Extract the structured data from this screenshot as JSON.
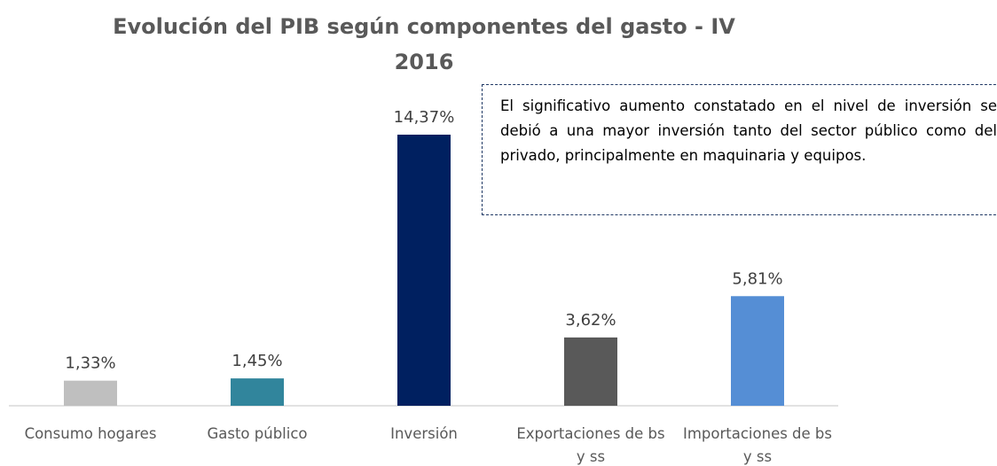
{
  "chart_data": {
    "type": "bar",
    "title": "Evolución del PIB según componentes del gasto - IV 2016",
    "categories": [
      "Consumo hogares",
      "Gasto público",
      "Inversión",
      "Exportaciones de bs y ss",
      "Importaciones de bs y ss"
    ],
    "values": [
      1.33,
      1.45,
      14.37,
      3.62,
      5.81
    ],
    "value_labels": [
      "1,33%",
      "1,45%",
      "14,37%",
      "3,62%",
      "5,81%"
    ],
    "colors": [
      "#bfbfbf",
      "#31859c",
      "#002060",
      "#595959",
      "#558ed5"
    ],
    "annotation": "El significativo aumento constatado en el nivel de inversión se debió a una mayor inversión tanto del sector público como del privado, principalmente en maquinaria y equipos."
  }
}
